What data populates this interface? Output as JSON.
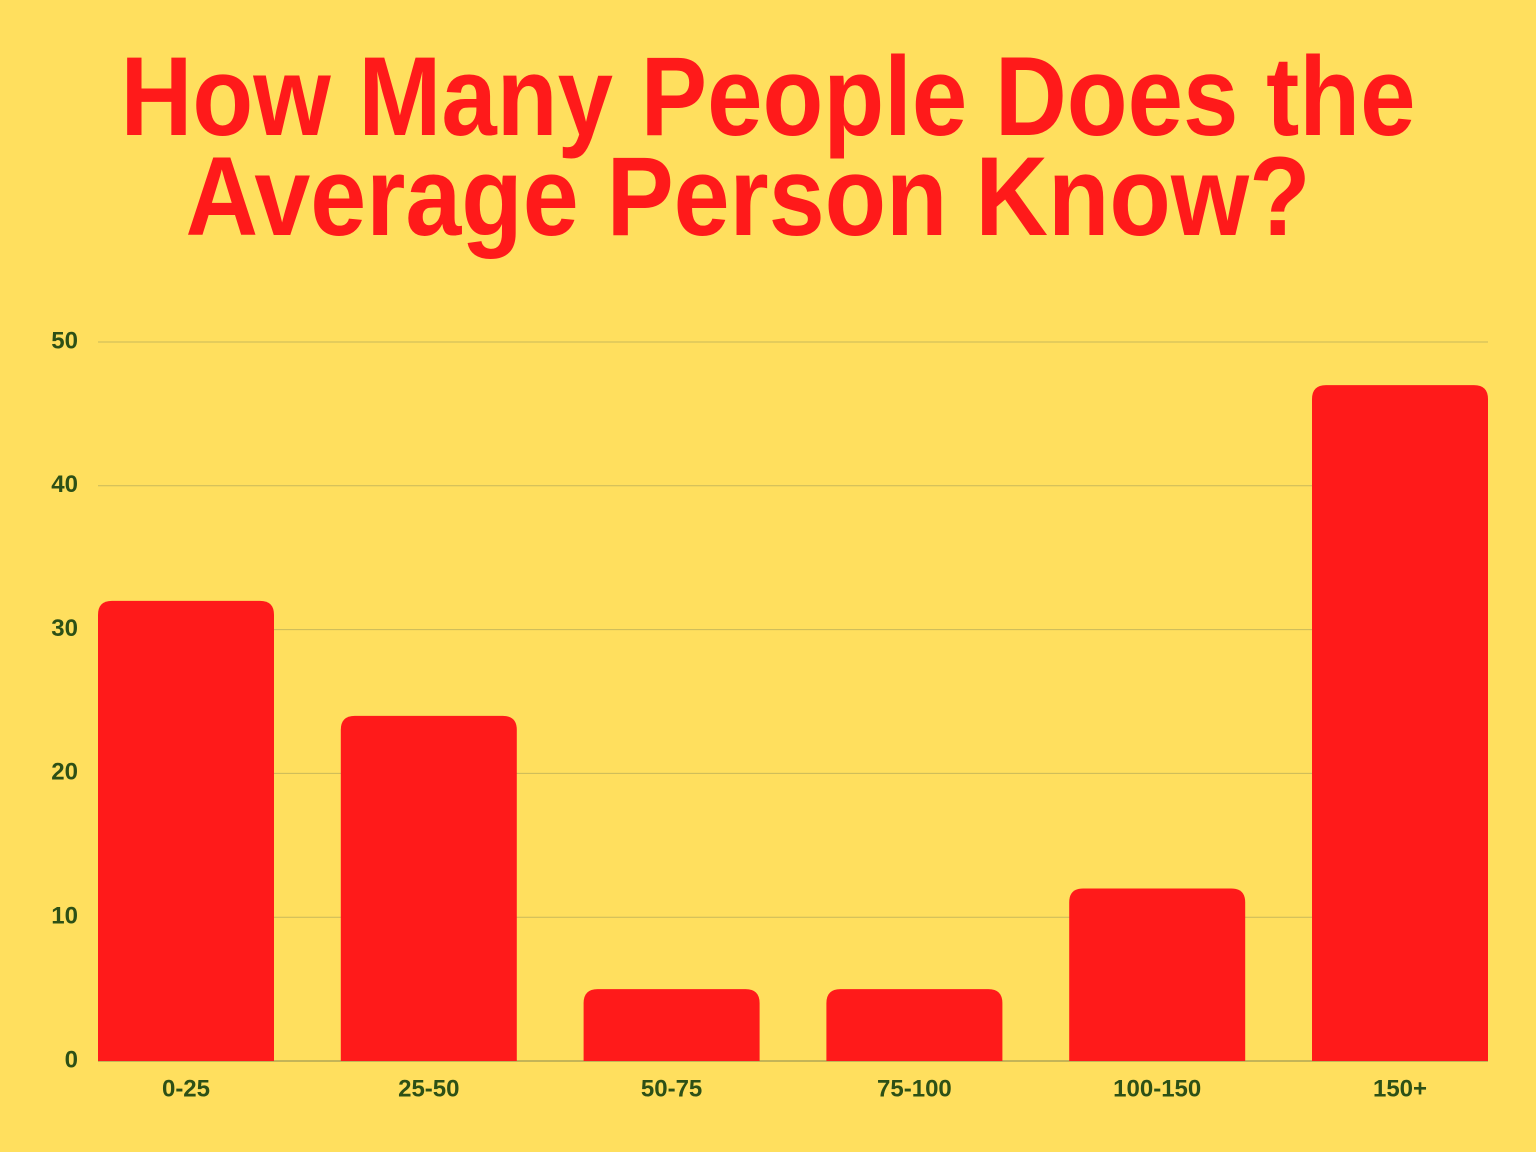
{
  "chart_data": {
    "type": "bar",
    "title": [
      "How Many People Does the",
      "Average Person Know?"
    ],
    "categories": [
      "0-25",
      "25-50",
      "50-75",
      "75-100",
      "100-150",
      "150+"
    ],
    "values": [
      32,
      24,
      5,
      5,
      12,
      47
    ],
    "color": "#ff1a1a",
    "ylim": [
      0,
      50
    ],
    "yticks": [
      0,
      10,
      20,
      30,
      40,
      50
    ],
    "grid": true
  }
}
